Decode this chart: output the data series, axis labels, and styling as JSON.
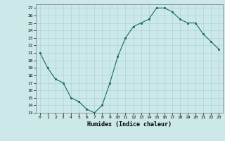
{
  "x": [
    0,
    1,
    2,
    3,
    4,
    5,
    6,
    7,
    8,
    9,
    10,
    11,
    12,
    13,
    14,
    15,
    16,
    17,
    18,
    19,
    20,
    21,
    22,
    23
  ],
  "y": [
    21,
    19,
    17.5,
    17,
    15,
    14.5,
    13.5,
    13,
    14,
    17,
    20.5,
    23,
    24.5,
    25,
    25.5,
    27,
    27,
    26.5,
    25.5,
    25,
    25,
    23.5,
    22.5,
    21.5
  ],
  "line_color": "#1a6b5a",
  "marker_color": "#1a6b5a",
  "bg_color": "#cce8e8",
  "grid_color": "#aad4d4",
  "xlabel": "Humidex (Indice chaleur)",
  "xlim": [
    -0.5,
    23.5
  ],
  "ylim": [
    13,
    27.5
  ],
  "yticks": [
    13,
    14,
    15,
    16,
    17,
    18,
    19,
    20,
    21,
    22,
    23,
    24,
    25,
    26,
    27
  ],
  "xticks": [
    0,
    1,
    2,
    3,
    4,
    5,
    6,
    7,
    8,
    9,
    10,
    11,
    12,
    13,
    14,
    15,
    16,
    17,
    18,
    19,
    20,
    21,
    22,
    23
  ]
}
